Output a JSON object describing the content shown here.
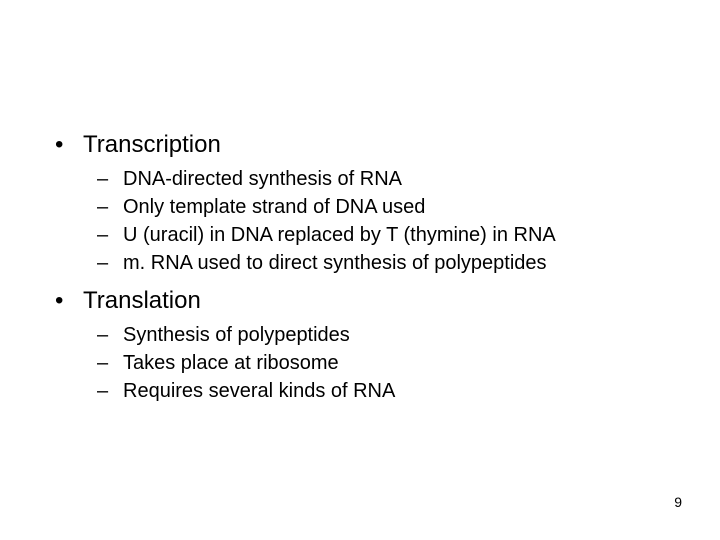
{
  "slide": {
    "background_color": "#ffffff",
    "text_color": "#000000",
    "font_family": "Arial",
    "level1_fontsize_pt": 24,
    "level2_fontsize_pt": 20,
    "page_number_fontsize_pt": 14,
    "level1_bullet_glyph": "•",
    "level2_bullet_glyph": "–",
    "items": [
      {
        "label": "Transcription",
        "subitems": [
          "DNA-directed synthesis of RNA",
          "Only template strand of DNA used",
          "U (uracil) in DNA replaced by T (thymine) in RNA",
          "m. RNA used to direct synthesis of polypeptides"
        ]
      },
      {
        "label": "Translation",
        "subitems": [
          "Synthesis of polypeptides",
          "Takes place at ribosome",
          "Requires several kinds of RNA"
        ]
      }
    ],
    "page_number": "9"
  }
}
